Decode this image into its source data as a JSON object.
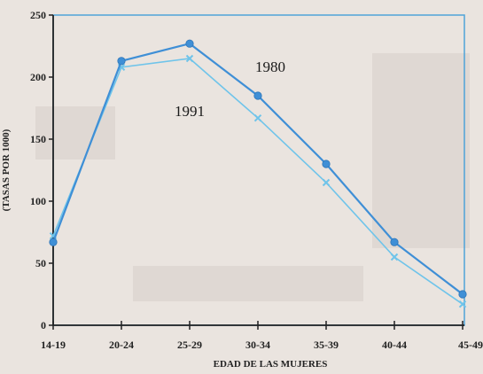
{
  "chart_data": {
    "type": "line",
    "xlabel": "EDAD DE LAS MUJERES",
    "ylabel": "(TASAS POR 1000)",
    "categories": [
      "14-19",
      "20-24",
      "25-29",
      "30-34",
      "35-39",
      "40-44",
      "45-49"
    ],
    "ylim": [
      0,
      250
    ],
    "yticks": [
      0,
      50,
      100,
      150,
      200,
      250
    ],
    "grid": false,
    "series": [
      {
        "name": "1980",
        "values": [
          67,
          213,
          227,
          185,
          130,
          67,
          25
        ],
        "color": "#3f8fd6",
        "marker": "circle"
      },
      {
        "name": "1991",
        "values": [
          72,
          208,
          215,
          167,
          115,
          55,
          17
        ],
        "color": "#6fc4ea",
        "marker": "x"
      }
    ]
  }
}
